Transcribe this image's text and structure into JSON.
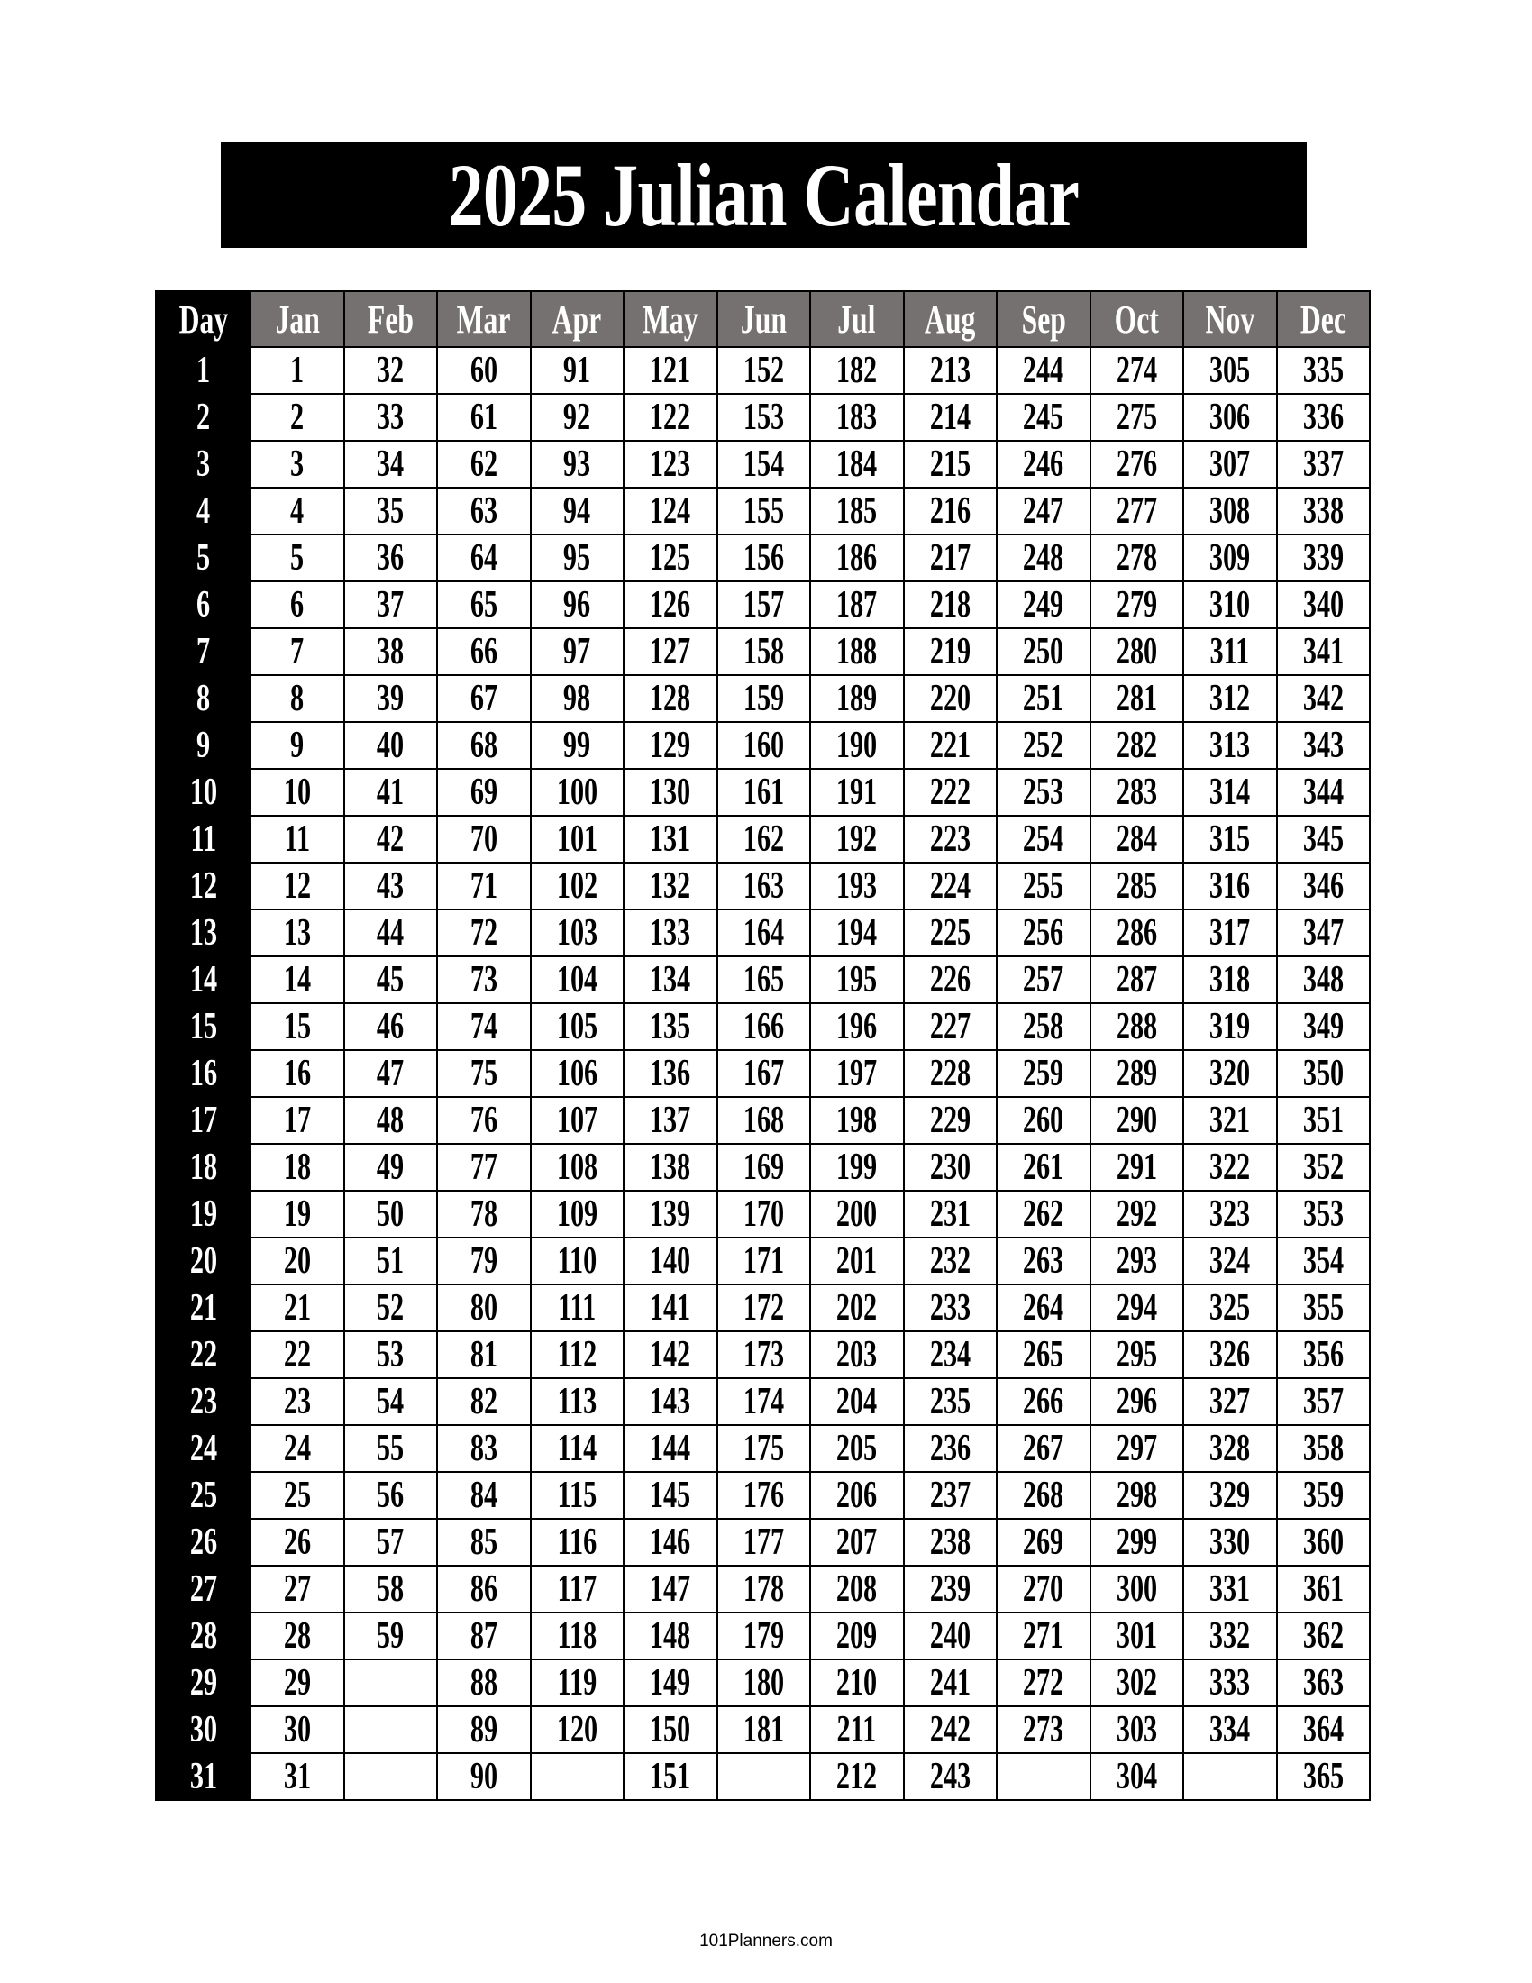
{
  "title": "2025 Julian Calendar",
  "header": [
    "Day",
    "Jan",
    "Feb",
    "Mar",
    "Apr",
    "May",
    "Jun",
    "Jul",
    "Aug",
    "Sep",
    "Oct",
    "Nov",
    "Dec"
  ],
  "rows": [
    [
      "1",
      "1",
      "32",
      "60",
      "91",
      "121",
      "152",
      "182",
      "213",
      "244",
      "274",
      "305",
      "335"
    ],
    [
      "2",
      "2",
      "33",
      "61",
      "92",
      "122",
      "153",
      "183",
      "214",
      "245",
      "275",
      "306",
      "336"
    ],
    [
      "3",
      "3",
      "34",
      "62",
      "93",
      "123",
      "154",
      "184",
      "215",
      "246",
      "276",
      "307",
      "337"
    ],
    [
      "4",
      "4",
      "35",
      "63",
      "94",
      "124",
      "155",
      "185",
      "216",
      "247",
      "277",
      "308",
      "338"
    ],
    [
      "5",
      "5",
      "36",
      "64",
      "95",
      "125",
      "156",
      "186",
      "217",
      "248",
      "278",
      "309",
      "339"
    ],
    [
      "6",
      "6",
      "37",
      "65",
      "96",
      "126",
      "157",
      "187",
      "218",
      "249",
      "279",
      "310",
      "340"
    ],
    [
      "7",
      "7",
      "38",
      "66",
      "97",
      "127",
      "158",
      "188",
      "219",
      "250",
      "280",
      "311",
      "341"
    ],
    [
      "8",
      "8",
      "39",
      "67",
      "98",
      "128",
      "159",
      "189",
      "220",
      "251",
      "281",
      "312",
      "342"
    ],
    [
      "9",
      "9",
      "40",
      "68",
      "99",
      "129",
      "160",
      "190",
      "221",
      "252",
      "282",
      "313",
      "343"
    ],
    [
      "10",
      "10",
      "41",
      "69",
      "100",
      "130",
      "161",
      "191",
      "222",
      "253",
      "283",
      "314",
      "344"
    ],
    [
      "11",
      "11",
      "42",
      "70",
      "101",
      "131",
      "162",
      "192",
      "223",
      "254",
      "284",
      "315",
      "345"
    ],
    [
      "12",
      "12",
      "43",
      "71",
      "102",
      "132",
      "163",
      "193",
      "224",
      "255",
      "285",
      "316",
      "346"
    ],
    [
      "13",
      "13",
      "44",
      "72",
      "103",
      "133",
      "164",
      "194",
      "225",
      "256",
      "286",
      "317",
      "347"
    ],
    [
      "14",
      "14",
      "45",
      "73",
      "104",
      "134",
      "165",
      "195",
      "226",
      "257",
      "287",
      "318",
      "348"
    ],
    [
      "15",
      "15",
      "46",
      "74",
      "105",
      "135",
      "166",
      "196",
      "227",
      "258",
      "288",
      "319",
      "349"
    ],
    [
      "16",
      "16",
      "47",
      "75",
      "106",
      "136",
      "167",
      "197",
      "228",
      "259",
      "289",
      "320",
      "350"
    ],
    [
      "17",
      "17",
      "48",
      "76",
      "107",
      "137",
      "168",
      "198",
      "229",
      "260",
      "290",
      "321",
      "351"
    ],
    [
      "18",
      "18",
      "49",
      "77",
      "108",
      "138",
      "169",
      "199",
      "230",
      "261",
      "291",
      "322",
      "352"
    ],
    [
      "19",
      "19",
      "50",
      "78",
      "109",
      "139",
      "170",
      "200",
      "231",
      "262",
      "292",
      "323",
      "353"
    ],
    [
      "20",
      "20",
      "51",
      "79",
      "110",
      "140",
      "171",
      "201",
      "232",
      "263",
      "293",
      "324",
      "354"
    ],
    [
      "21",
      "21",
      "52",
      "80",
      "111",
      "141",
      "172",
      "202",
      "233",
      "264",
      "294",
      "325",
      "355"
    ],
    [
      "22",
      "22",
      "53",
      "81",
      "112",
      "142",
      "173",
      "203",
      "234",
      "265",
      "295",
      "326",
      "356"
    ],
    [
      "23",
      "23",
      "54",
      "82",
      "113",
      "143",
      "174",
      "204",
      "235",
      "266",
      "296",
      "327",
      "357"
    ],
    [
      "24",
      "24",
      "55",
      "83",
      "114",
      "144",
      "175",
      "205",
      "236",
      "267",
      "297",
      "328",
      "358"
    ],
    [
      "25",
      "25",
      "56",
      "84",
      "115",
      "145",
      "176",
      "206",
      "237",
      "268",
      "298",
      "329",
      "359"
    ],
    [
      "26",
      "26",
      "57",
      "85",
      "116",
      "146",
      "177",
      "207",
      "238",
      "269",
      "299",
      "330",
      "360"
    ],
    [
      "27",
      "27",
      "58",
      "86",
      "117",
      "147",
      "178",
      "208",
      "239",
      "270",
      "300",
      "331",
      "361"
    ],
    [
      "28",
      "28",
      "59",
      "87",
      "118",
      "148",
      "179",
      "209",
      "240",
      "271",
      "301",
      "332",
      "362"
    ],
    [
      "29",
      "29",
      "",
      "88",
      "119",
      "149",
      "180",
      "210",
      "241",
      "272",
      "302",
      "333",
      "363"
    ],
    [
      "30",
      "30",
      "",
      "89",
      "120",
      "150",
      "181",
      "211",
      "242",
      "273",
      "303",
      "334",
      "364"
    ],
    [
      "31",
      "31",
      "",
      "90",
      "",
      "151",
      "",
      "212",
      "243",
      "",
      "304",
      "",
      "365"
    ]
  ],
  "footer": "101Planners.com",
  "colors": {
    "header_bg": "#757170",
    "day_column_bg": "#000000",
    "title_bg": "#000000"
  }
}
